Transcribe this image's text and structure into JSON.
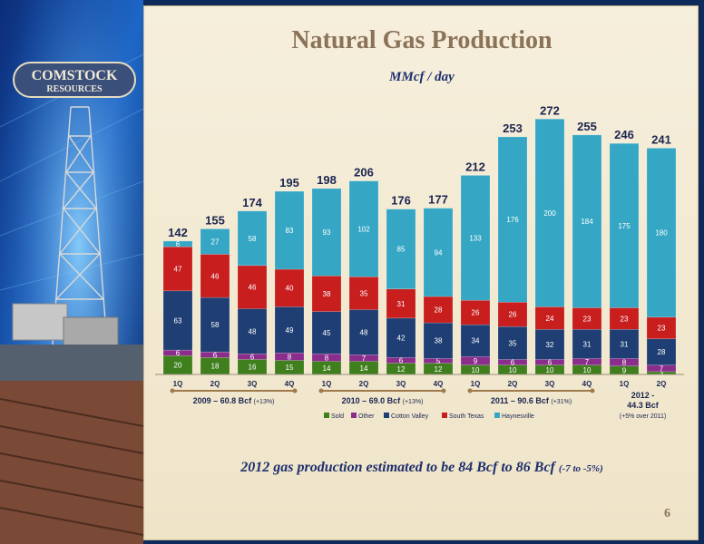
{
  "slide": {
    "title": "Natural Gas Production",
    "subtitle": "MMcf / day",
    "footer_main": "2012 gas production estimated to be 84 Bcf to 86 Bcf",
    "footer_small": "(-7 to -5%)",
    "page_number": "6",
    "logo_line1": "COMSTOCK",
    "logo_line2": "RESOURCES"
  },
  "colors": {
    "Sold": "#3f7f1e",
    "Other": "#8a2d8c",
    "Cotton Valley": "#1f3f74",
    "South Texas": "#c81e1e",
    "Haynesville": "#35a7c5"
  },
  "chart_data": {
    "type": "bar",
    "stacked": true,
    "categories": [
      "1Q",
      "2Q",
      "3Q",
      "4Q",
      "1Q",
      "2Q",
      "3Q",
      "4Q",
      "1Q",
      "2Q",
      "3Q",
      "4Q",
      "1Q",
      "2Q"
    ],
    "series": [
      {
        "name": "Sold",
        "values": [
          20,
          18,
          16,
          15,
          14,
          14,
          12,
          12,
          10,
          10,
          10,
          10,
          9,
          3
        ]
      },
      {
        "name": "Other",
        "values": [
          6,
          6,
          6,
          8,
          8,
          7,
          6,
          5,
          9,
          6,
          6,
          7,
          8,
          7
        ]
      },
      {
        "name": "Cotton Valley",
        "values": [
          63,
          58,
          48,
          49,
          45,
          48,
          42,
          38,
          34,
          35,
          32,
          31,
          31,
          28
        ]
      },
      {
        "name": "South Texas",
        "values": [
          47,
          46,
          46,
          40,
          38,
          35,
          31,
          28,
          26,
          26,
          24,
          23,
          23,
          23
        ]
      },
      {
        "name": "Haynesville",
        "values": [
          6,
          27,
          58,
          83,
          93,
          102,
          85,
          94,
          133,
          176,
          200,
          184,
          175,
          180
        ]
      }
    ],
    "totals": [
      142,
      155,
      174,
      195,
      198,
      206,
      176,
      177,
      212,
      253,
      272,
      255,
      246,
      241
    ],
    "year_groups": [
      {
        "label": "2009 – 60.8 Bcf",
        "note": "(+13%)"
      },
      {
        "label": "2010 – 69.0 Bcf",
        "note": "(+13%)"
      },
      {
        "label": "2011 – 90.6 Bcf",
        "note": "(+31%)"
      },
      {
        "label": "2012 -\n44.3 Bcf",
        "note": "(+5% over 2011)"
      }
    ],
    "ylim": [
      0,
      280
    ],
    "grid": false,
    "legend_position": "bottom"
  }
}
